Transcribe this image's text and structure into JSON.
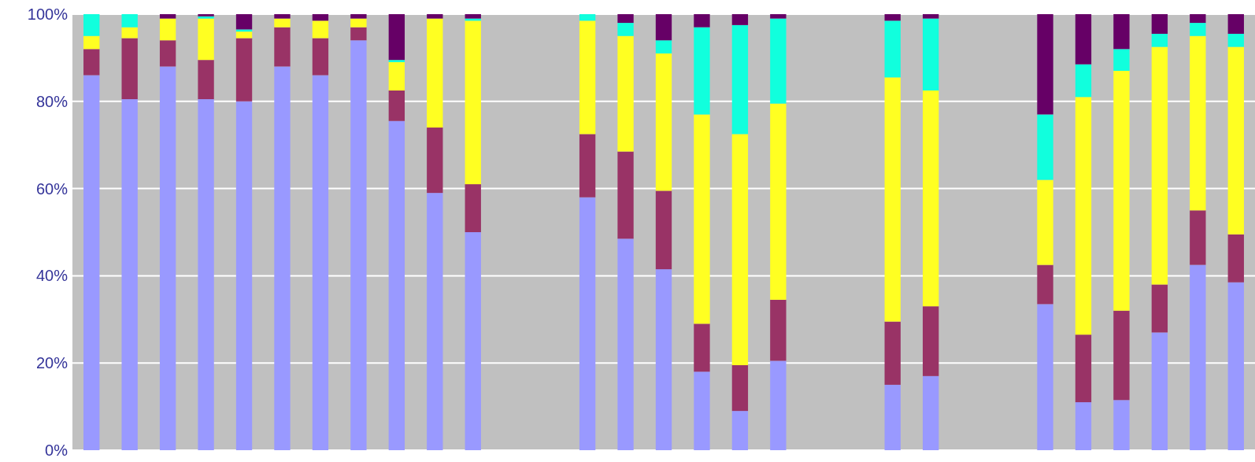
{
  "chart_data": {
    "type": "bar",
    "stacked": true,
    "grid": "y",
    "categories": [
      null,
      null,
      null,
      null,
      null,
      null,
      null,
      null,
      null,
      null,
      null,
      null,
      null,
      null,
      null,
      null,
      null,
      null,
      null,
      null,
      null,
      null,
      null,
      null,
      null,
      null,
      null,
      null,
      null,
      null,
      null
    ],
    "ylim": [
      0,
      100
    ],
    "yticks": [
      {
        "value": 0,
        "label": "0%"
      },
      {
        "value": 20,
        "label": "20%"
      },
      {
        "value": 40,
        "label": "40%"
      },
      {
        "value": 60,
        "label": "60%"
      },
      {
        "value": 80,
        "label": "80%"
      },
      {
        "value": 100,
        "label": "100%"
      }
    ],
    "series": [
      {
        "color": "#9999ff",
        "values": [
          86,
          80.5,
          88,
          80.5,
          80,
          88,
          86,
          94,
          75.5,
          59,
          50,
          null,
          null,
          58,
          48.5,
          41.5,
          18,
          9,
          20.5,
          null,
          null,
          15,
          17,
          null,
          null,
          33.5,
          11,
          11.5,
          27,
          42.5,
          38.5
        ]
      },
      {
        "color": "#993366",
        "values": [
          6,
          14,
          6,
          9,
          14.5,
          9,
          8.5,
          3,
          7,
          15,
          11,
          null,
          null,
          14.5,
          20,
          18,
          11,
          10.5,
          14,
          null,
          null,
          14.5,
          16,
          null,
          null,
          9,
          15.5,
          20.5,
          11,
          12.5,
          11
        ]
      },
      {
        "color": "#ffff22",
        "values": [
          3,
          2.5,
          5,
          9.5,
          1.5,
          2,
          4,
          2,
          6.5,
          25,
          37.5,
          null,
          null,
          26,
          26.5,
          31.5,
          48,
          53,
          45,
          null,
          null,
          56,
          49.5,
          null,
          null,
          19.5,
          54.5,
          55,
          54.5,
          40,
          43
        ]
      },
      {
        "color": "#11ffdd",
        "values": [
          5,
          3,
          0,
          0.5,
          0.5,
          0,
          0,
          0,
          0.5,
          0,
          0.5,
          null,
          null,
          1.5,
          3,
          3,
          20,
          25,
          19.5,
          null,
          null,
          13,
          16.5,
          null,
          null,
          15,
          7.5,
          5,
          3,
          3,
          3
        ]
      },
      {
        "color": "#660066",
        "values": [
          0,
          0,
          1,
          0.5,
          3.5,
          1,
          1.5,
          1,
          10.5,
          1,
          1,
          null,
          null,
          0,
          2,
          6,
          3,
          2.5,
          1,
          null,
          null,
          1.5,
          1,
          null,
          null,
          23,
          11.5,
          8,
          4.5,
          2,
          4.5
        ]
      }
    ]
  }
}
